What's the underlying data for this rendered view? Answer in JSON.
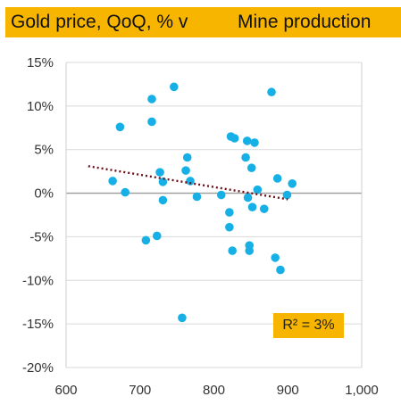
{
  "chart_data": {
    "type": "scatter",
    "title_left": "Gold price, QoQ, % v",
    "title_right": "Mine production",
    "xlabel": "",
    "ylabel": "",
    "xlim": [
      600,
      1000
    ],
    "ylim": [
      -20,
      15
    ],
    "x_ticks": [
      600,
      700,
      800,
      900,
      1000
    ],
    "x_tick_labels": [
      "600",
      "700",
      "800",
      "900",
      "1,000"
    ],
    "y_ticks": [
      15,
      10,
      5,
      0,
      -5,
      -10,
      -15,
      -20
    ],
    "y_tick_labels": [
      "15%",
      "10%",
      "5%",
      "0%",
      "-5%",
      "-10%",
      "-15%",
      "-20%"
    ],
    "grid": "horizontal",
    "point_color": "#16b0e6",
    "trend_color": "#6b0f1a",
    "annotation": "R² = 3%",
    "trendline": {
      "x": [
        630,
        900
      ],
      "y": [
        3.1,
        -0.7
      ]
    },
    "points": [
      {
        "x": 673,
        "y": 7.6
      },
      {
        "x": 663,
        "y": 1.4
      },
      {
        "x": 680,
        "y": 0.1
      },
      {
        "x": 716,
        "y": 10.8
      },
      {
        "x": 716,
        "y": 8.2
      },
      {
        "x": 746,
        "y": 12.2
      },
      {
        "x": 727,
        "y": 2.4
      },
      {
        "x": 731,
        "y": 1.3
      },
      {
        "x": 731,
        "y": -0.8
      },
      {
        "x": 708,
        "y": -5.4
      },
      {
        "x": 723,
        "y": -4.9
      },
      {
        "x": 764,
        "y": 4.1
      },
      {
        "x": 762,
        "y": 2.6
      },
      {
        "x": 768,
        "y": 1.4
      },
      {
        "x": 777,
        "y": -0.4
      },
      {
        "x": 757,
        "y": -14.3
      },
      {
        "x": 823,
        "y": 6.5
      },
      {
        "x": 828,
        "y": 6.3
      },
      {
        "x": 845,
        "y": 6.0
      },
      {
        "x": 855,
        "y": 5.8
      },
      {
        "x": 878,
        "y": 11.6
      },
      {
        "x": 843,
        "y": 4.1
      },
      {
        "x": 851,
        "y": 2.9
      },
      {
        "x": 810,
        "y": -0.2
      },
      {
        "x": 846,
        "y": -0.5
      },
      {
        "x": 859,
        "y": 0.4
      },
      {
        "x": 821,
        "y": -2.2
      },
      {
        "x": 852,
        "y": -1.6
      },
      {
        "x": 868,
        "y": -1.8
      },
      {
        "x": 821,
        "y": -3.9
      },
      {
        "x": 886,
        "y": 1.7
      },
      {
        "x": 899,
        "y": -0.2
      },
      {
        "x": 906,
        "y": 1.1
      },
      {
        "x": 825,
        "y": -6.6
      },
      {
        "x": 848,
        "y": -6.0
      },
      {
        "x": 848,
        "y": -6.6
      },
      {
        "x": 883,
        "y": -7.4
      },
      {
        "x": 890,
        "y": -8.8
      }
    ]
  }
}
